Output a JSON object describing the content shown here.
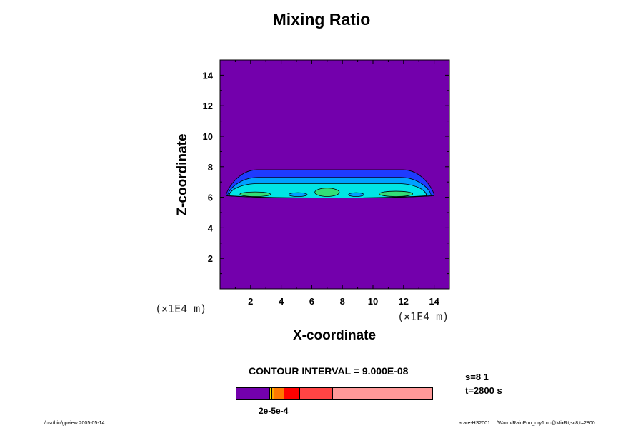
{
  "chart_data": {
    "type": "contour",
    "title": "Mixing Ratio",
    "xlabel": "X-coordinate",
    "ylabel": "Z-coordinate",
    "x_unit": "(×1E4 m)",
    "y_unit": "(×1E4 m)",
    "xlim": [
      0,
      15
    ],
    "ylim": [
      0,
      15
    ],
    "xticks": [
      2,
      4,
      6,
      8,
      10,
      12,
      14
    ],
    "yticks": [
      2,
      4,
      6,
      8,
      10,
      12,
      14
    ],
    "background_color": "#7300ac",
    "contour_bands": [
      {
        "color": "#1e3cff",
        "x": [
          0.4,
          14.0
        ],
        "zmin": 6.1,
        "zmax": 7.8
      },
      {
        "color": "#00a0ff",
        "x": [
          0.5,
          13.8
        ],
        "zmin": 6.1,
        "zmax": 7.3
      },
      {
        "color": "#00e5e5",
        "x": [
          0.6,
          13.5
        ],
        "zmin": 6.1,
        "zmax": 6.9
      }
    ],
    "cells": [
      {
        "x": [
          1.3,
          3.3
        ],
        "z": [
          6.05,
          6.35
        ],
        "color": "#33dd77"
      },
      {
        "x": [
          4.5,
          5.7
        ],
        "z": [
          6.05,
          6.3
        ],
        "color": "#00a0ff"
      },
      {
        "x": [
          6.2,
          7.8
        ],
        "z": [
          6.05,
          6.6
        ],
        "color": "#33dd77"
      },
      {
        "x": [
          8.4,
          9.4
        ],
        "z": [
          6.05,
          6.3
        ],
        "color": "#00a0ff"
      },
      {
        "x": [
          10.4,
          12.6
        ],
        "z": [
          6.05,
          6.4
        ],
        "color": "#33dd77"
      }
    ],
    "colorbar": {
      "colors": [
        "#7300ac",
        "#ffdd00",
        "#ffaa00",
        "#ff7700",
        "#ff0000",
        "#ff4444",
        "#ff9999"
      ],
      "tick_label": "2e-5e-4"
    },
    "contour_interval_label": "CONTOUR INTERVAL = 9.000E-08"
  },
  "annotations": {
    "s_label": "s=8 1",
    "t_label": "t=2800 s"
  },
  "footer": {
    "left": "/usr/bin/gpview 2005-05-14",
    "right": "arare-HS2001 …/Warm/RainPrm_dry1.nc@MixRt,sc8,t=2800"
  }
}
